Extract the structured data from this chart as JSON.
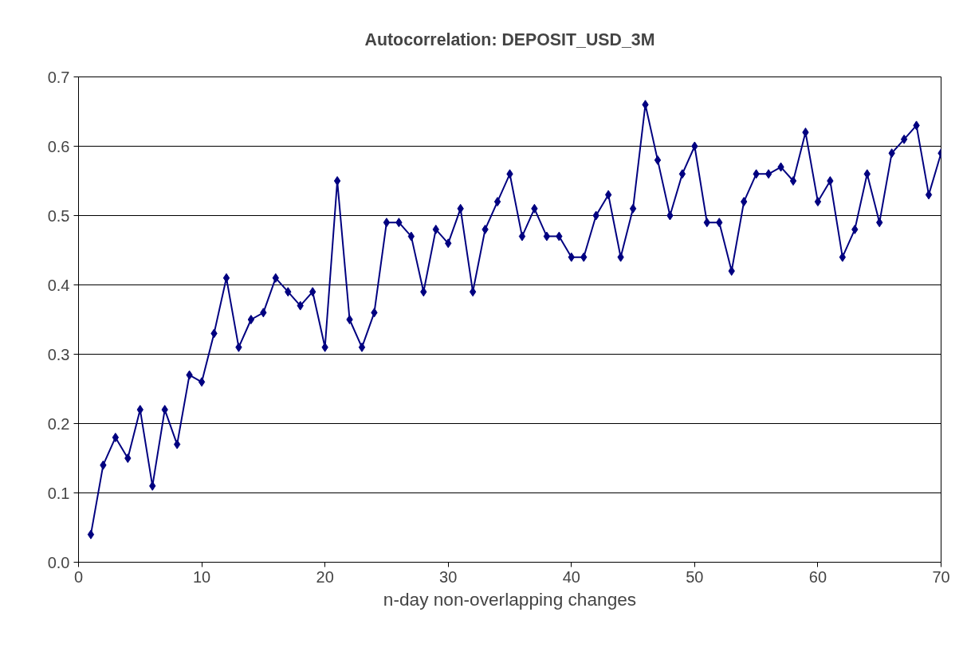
{
  "chart_data": {
    "type": "line",
    "title": "Autocorrelation: DEPOSIT_USD_3M",
    "xlabel": "n-day non-overlapping changes",
    "x": [
      1,
      2,
      3,
      4,
      5,
      6,
      7,
      8,
      9,
      10,
      11,
      12,
      13,
      14,
      15,
      16,
      17,
      18,
      19,
      20,
      21,
      22,
      23,
      24,
      25,
      26,
      27,
      28,
      29,
      30,
      31,
      32,
      33,
      34,
      35,
      36,
      37,
      38,
      39,
      40,
      41,
      42,
      43,
      44,
      45,
      46,
      47,
      48,
      49,
      50,
      51,
      52,
      53,
      54,
      55,
      56,
      57,
      58,
      59,
      60,
      61,
      62,
      63,
      64,
      65,
      66,
      67,
      68,
      69,
      70
    ],
    "series": [
      {
        "color": "#000080",
        "values": [
          0.04,
          0.14,
          0.18,
          0.15,
          0.22,
          0.11,
          0.22,
          0.17,
          0.27,
          0.26,
          0.33,
          0.41,
          0.31,
          0.35,
          0.36,
          0.41,
          0.39,
          0.37,
          0.39,
          0.31,
          0.55,
          0.35,
          0.31,
          0.36,
          0.49,
          0.49,
          0.47,
          0.39,
          0.48,
          0.46,
          0.51,
          0.39,
          0.48,
          0.52,
          0.56,
          0.47,
          0.51,
          0.47,
          0.47,
          0.44,
          0.44,
          0.5,
          0.53,
          0.44,
          0.51,
          0.66,
          0.58,
          0.5,
          0.56,
          0.6,
          0.49,
          0.49,
          0.42,
          0.52,
          0.56,
          0.56,
          0.57,
          0.55,
          0.62,
          0.52,
          0.55,
          0.44,
          0.48,
          0.56,
          0.49,
          0.59,
          0.61,
          0.63,
          0.53,
          0.59
        ]
      }
    ],
    "xlim": [
      0,
      70
    ],
    "xticks": [
      0,
      10,
      20,
      30,
      40,
      50,
      60,
      70
    ],
    "ylim": [
      0,
      0.7
    ],
    "yticks": [
      {
        "value": 0,
        "label": "0.0"
      },
      0.1,
      0.2,
      0.3,
      0.4,
      0.5,
      0.6,
      0.7
    ],
    "grid": "y",
    "marker": "diamond",
    "line_style": "solid"
  }
}
